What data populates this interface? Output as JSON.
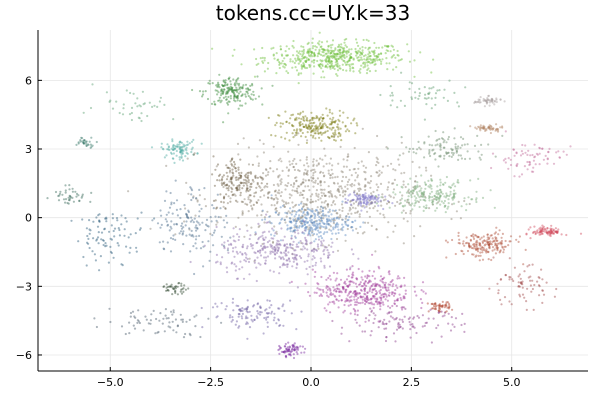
{
  "chart_data": {
    "type": "scatter",
    "title": "tokens.cc=UY.k=33",
    "xlabel": "",
    "ylabel": "",
    "xlim": [
      -6.8,
      6.9
    ],
    "ylim": [
      -6.7,
      8.2
    ],
    "x_ticks": [
      -5.0,
      -2.5,
      0.0,
      2.5,
      5.0
    ],
    "x_tick_labels": [
      "−5.0",
      "−2.5",
      "0.0",
      "2.5",
      "5.0"
    ],
    "y_ticks": [
      -6,
      -3,
      0,
      3,
      6
    ],
    "y_tick_labels": [
      "−6",
      "−3",
      "0",
      "3",
      "6"
    ],
    "grid": true,
    "legend": "none",
    "clusters": [
      {
        "x": 0.6,
        "y": 7.0,
        "spread_x": 1.6,
        "spread_y": 0.6,
        "count": 520,
        "color": "#6cbf3a"
      },
      {
        "x": -2.0,
        "y": 5.5,
        "spread_x": 0.6,
        "spread_y": 0.6,
        "count": 180,
        "color": "#3a8a3a"
      },
      {
        "x": 0.1,
        "y": 4.0,
        "spread_x": 0.8,
        "spread_y": 0.6,
        "count": 220,
        "color": "#7a7a10"
      },
      {
        "x": -3.3,
        "y": 3.0,
        "spread_x": 0.4,
        "spread_y": 0.35,
        "count": 90,
        "color": "#4aa8a0"
      },
      {
        "x": 0.2,
        "y": 1.0,
        "spread_x": 2.3,
        "spread_y": 1.8,
        "count": 700,
        "color": "#8a8070"
      },
      {
        "x": -1.8,
        "y": 1.6,
        "spread_x": 0.6,
        "spread_y": 1.0,
        "count": 160,
        "color": "#6a5a40"
      },
      {
        "x": 0.0,
        "y": -0.2,
        "spread_x": 0.9,
        "spread_y": 0.6,
        "count": 260,
        "color": "#5a8ac0"
      },
      {
        "x": 1.3,
        "y": 0.8,
        "spread_x": 0.4,
        "spread_y": 0.3,
        "count": 90,
        "color": "#7a70c8"
      },
      {
        "x": 1.3,
        "y": -3.2,
        "spread_x": 1.1,
        "spread_y": 0.8,
        "count": 380,
        "color": "#a03a9a"
      },
      {
        "x": -0.8,
        "y": -1.5,
        "spread_x": 1.4,
        "spread_y": 0.9,
        "count": 300,
        "color": "#8a6aa8"
      },
      {
        "x": 3.0,
        "y": 1.0,
        "spread_x": 0.9,
        "spread_y": 0.6,
        "count": 200,
        "color": "#7aaa7a"
      },
      {
        "x": 4.3,
        "y": -1.2,
        "spread_x": 0.7,
        "spread_y": 0.5,
        "count": 180,
        "color": "#b0503a"
      },
      {
        "x": 5.9,
        "y": -0.6,
        "spread_x": 0.35,
        "spread_y": 0.2,
        "count": 90,
        "color": "#d04a5a"
      },
      {
        "x": 4.4,
        "y": 5.1,
        "spread_x": 0.3,
        "spread_y": 0.15,
        "count": 50,
        "color": "#a8a0a0"
      },
      {
        "x": 4.4,
        "y": 3.9,
        "spread_x": 0.35,
        "spread_y": 0.15,
        "count": 50,
        "color": "#b08060"
      },
      {
        "x": 3.2,
        "y": -3.9,
        "spread_x": 0.25,
        "spread_y": 0.2,
        "count": 50,
        "color": "#b0402a"
      },
      {
        "x": -0.5,
        "y": -5.8,
        "spread_x": 0.25,
        "spread_y": 0.25,
        "count": 70,
        "color": "#7a2aa0"
      },
      {
        "x": -3.4,
        "y": -3.1,
        "spread_x": 0.3,
        "spread_y": 0.2,
        "count": 40,
        "color": "#304a30"
      },
      {
        "x": -5.6,
        "y": 3.3,
        "spread_x": 0.25,
        "spread_y": 0.2,
        "count": 30,
        "color": "#3a7a6a"
      },
      {
        "x": -6.0,
        "y": 1.0,
        "spread_x": 0.4,
        "spread_y": 0.4,
        "count": 40,
        "color": "#3a6a5a"
      },
      {
        "x": -5.0,
        "y": -0.8,
        "spread_x": 0.8,
        "spread_y": 1.0,
        "count": 90,
        "color": "#2a5a7a"
      },
      {
        "x": -3.0,
        "y": -0.2,
        "spread_x": 0.8,
        "spread_y": 1.4,
        "count": 140,
        "color": "#4a6a8a"
      },
      {
        "x": -3.8,
        "y": -4.5,
        "spread_x": 1.2,
        "spread_y": 0.6,
        "count": 70,
        "color": "#4a5a6a"
      },
      {
        "x": 5.4,
        "y": 2.6,
        "spread_x": 0.8,
        "spread_y": 0.7,
        "count": 70,
        "color": "#c06a9a"
      },
      {
        "x": 5.2,
        "y": -3.0,
        "spread_x": 0.8,
        "spread_y": 0.8,
        "count": 70,
        "color": "#a04a4a"
      },
      {
        "x": 2.2,
        "y": -4.6,
        "spread_x": 1.4,
        "spread_y": 0.6,
        "count": 110,
        "color": "#8a3a8a"
      },
      {
        "x": -1.4,
        "y": -4.2,
        "spread_x": 1.0,
        "spread_y": 0.6,
        "count": 110,
        "color": "#6a5aa0"
      },
      {
        "x": -4.4,
        "y": 5.0,
        "spread_x": 0.9,
        "spread_y": 0.7,
        "count": 40,
        "color": "#5aa070"
      },
      {
        "x": 2.8,
        "y": 5.4,
        "spread_x": 0.9,
        "spread_y": 0.6,
        "count": 50,
        "color": "#5a9a6a"
      },
      {
        "x": 3.4,
        "y": 3.0,
        "spread_x": 1.0,
        "spread_y": 0.6,
        "count": 100,
        "color": "#6a8a6a"
      }
    ]
  }
}
